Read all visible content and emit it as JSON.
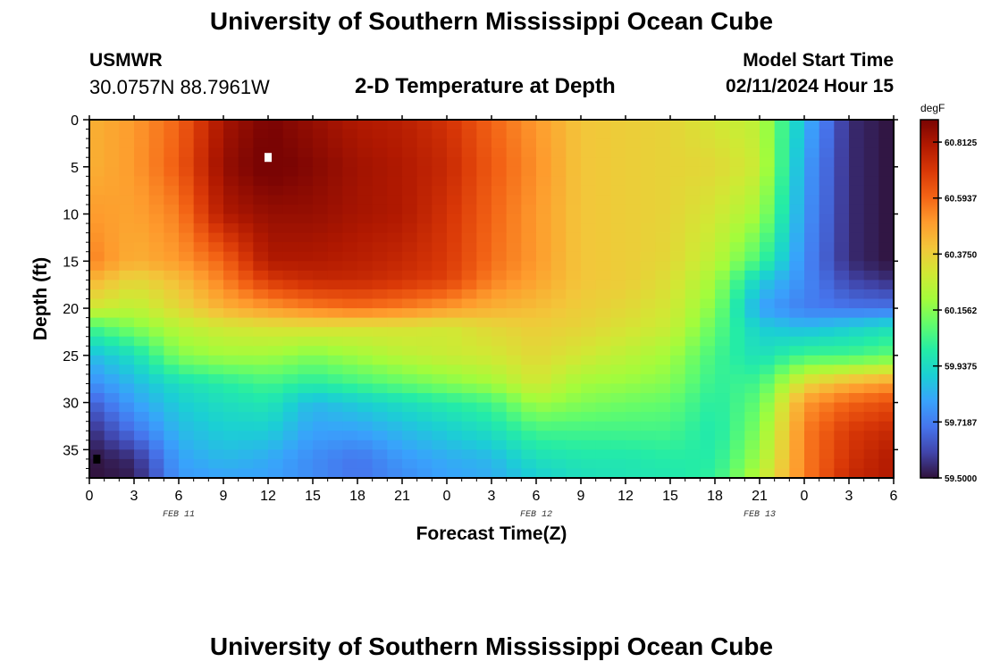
{
  "header": {
    "title": "University of Southern Mississippi Ocean Cube",
    "station": "USMWR",
    "coords": "30.0757N  88.7961W",
    "subtitle": "2-D Temperature at Depth",
    "model_start_label": "Model Start Time",
    "model_start_value": "02/11/2024 Hour 15"
  },
  "footer": {
    "title": "University of Southern Mississippi Ocean Cube"
  },
  "chart_data": {
    "type": "heatmap",
    "xlabel": "Forecast Time(Z)",
    "ylabel": "Depth (ft)",
    "x_tick_labels": [
      "0",
      "3",
      "6",
      "9",
      "12",
      "15",
      "18",
      "21",
      "0",
      "3",
      "6",
      "9",
      "12",
      "15",
      "18",
      "21",
      "0",
      "3",
      "6"
    ],
    "date_labels": [
      {
        "label": "FEB 11",
        "tick_index": 2
      },
      {
        "label": "FEB 12",
        "tick_index": 10
      },
      {
        "label": "FEB 13",
        "tick_index": 15
      }
    ],
    "x_range_hours": [
      0,
      54
    ],
    "y_ticks": [
      0,
      5,
      10,
      15,
      20,
      25,
      30,
      35
    ],
    "ylim": [
      0,
      38
    ],
    "colorbar": {
      "unit": "degF",
      "range": [
        59.5,
        60.9
      ],
      "tick_labels": [
        "60.8125",
        "60.5937",
        "60.3750",
        "60.1562",
        "59.9375",
        "59.7187",
        "59.5000"
      ],
      "tick_values": [
        60.8125,
        60.59375,
        60.375,
        60.15625,
        59.9375,
        59.71875,
        59.5
      ]
    },
    "colormap": [
      "#30123b",
      "#4145ab",
      "#4675ed",
      "#39a2fc",
      "#1bcfd4",
      "#24eca6",
      "#61fc6c",
      "#a4fc3b",
      "#d1e834",
      "#f3c63a",
      "#fe9b2d",
      "#f36315",
      "#d93807",
      "#b11901",
      "#7a0403"
    ],
    "grid_hours": [
      0,
      3,
      6,
      9,
      12,
      15,
      18,
      21,
      24,
      27,
      30,
      33,
      36,
      39,
      42,
      45,
      48,
      51,
      54
    ],
    "grid_depths": [
      0,
      5,
      10,
      15,
      17,
      20,
      22,
      25,
      28,
      30,
      33,
      36,
      38
    ],
    "values": [
      [
        60.45,
        60.5,
        60.6,
        60.82,
        60.9,
        60.85,
        60.8,
        60.78,
        60.72,
        60.6,
        60.5,
        60.4,
        60.38,
        60.36,
        60.3,
        60.25,
        59.85,
        59.55,
        59.5
      ],
      [
        60.45,
        60.5,
        60.62,
        60.85,
        60.92,
        60.88,
        60.83,
        60.8,
        60.75,
        60.62,
        60.52,
        60.4,
        60.38,
        60.36,
        60.35,
        60.28,
        59.8,
        59.55,
        59.5
      ],
      [
        60.5,
        60.48,
        60.55,
        60.8,
        60.85,
        60.85,
        60.82,
        60.8,
        60.72,
        60.6,
        60.5,
        60.4,
        60.38,
        60.36,
        60.3,
        60.2,
        59.78,
        59.55,
        59.5
      ],
      [
        60.55,
        60.45,
        60.5,
        60.6,
        60.8,
        60.8,
        60.78,
        60.75,
        60.7,
        60.58,
        60.5,
        60.4,
        60.38,
        60.35,
        60.25,
        60.05,
        59.75,
        59.55,
        59.5
      ],
      [
        60.45,
        60.35,
        60.42,
        60.55,
        60.7,
        60.75,
        60.75,
        60.72,
        60.68,
        60.55,
        60.48,
        60.4,
        60.38,
        60.33,
        60.2,
        59.9,
        59.75,
        59.6,
        59.55
      ],
      [
        60.3,
        60.25,
        60.35,
        60.45,
        60.5,
        60.55,
        60.58,
        60.55,
        60.5,
        60.45,
        60.42,
        60.38,
        60.35,
        60.3,
        60.15,
        59.8,
        59.72,
        59.7,
        59.7
      ],
      [
        60.05,
        60.15,
        60.25,
        60.3,
        60.32,
        60.33,
        60.32,
        60.32,
        60.3,
        60.35,
        60.38,
        60.36,
        60.32,
        60.28,
        60.1,
        59.9,
        59.85,
        59.9,
        59.95
      ],
      [
        59.85,
        59.95,
        60.15,
        60.2,
        60.2,
        60.15,
        60.2,
        60.25,
        60.28,
        60.3,
        60.35,
        60.3,
        60.25,
        60.2,
        60.05,
        59.95,
        60.05,
        60.05,
        60.1
      ],
      [
        59.75,
        59.85,
        59.95,
        60.0,
        60.05,
        60.0,
        60.05,
        60.1,
        60.15,
        60.2,
        60.3,
        60.2,
        60.18,
        60.15,
        60.02,
        60.05,
        60.35,
        60.45,
        60.5
      ],
      [
        59.65,
        59.8,
        59.9,
        59.95,
        59.98,
        59.85,
        59.9,
        59.95,
        60.0,
        60.05,
        60.2,
        60.15,
        60.12,
        60.1,
        60.0,
        60.1,
        60.5,
        60.6,
        60.65
      ],
      [
        59.55,
        59.7,
        59.85,
        59.9,
        59.9,
        59.8,
        59.8,
        59.85,
        59.9,
        59.95,
        60.05,
        60.05,
        60.05,
        60.05,
        59.98,
        60.15,
        60.55,
        60.7,
        60.75
      ],
      [
        59.5,
        59.55,
        59.8,
        59.85,
        59.82,
        59.75,
        59.7,
        59.78,
        59.82,
        59.85,
        59.95,
        59.98,
        59.98,
        60.0,
        60.0,
        60.2,
        60.55,
        60.72,
        60.8
      ],
      [
        59.5,
        59.52,
        59.78,
        59.8,
        59.8,
        59.75,
        59.7,
        59.75,
        59.8,
        59.82,
        59.9,
        59.95,
        59.97,
        59.98,
        60.02,
        60.25,
        60.55,
        60.75,
        60.8
      ]
    ]
  }
}
